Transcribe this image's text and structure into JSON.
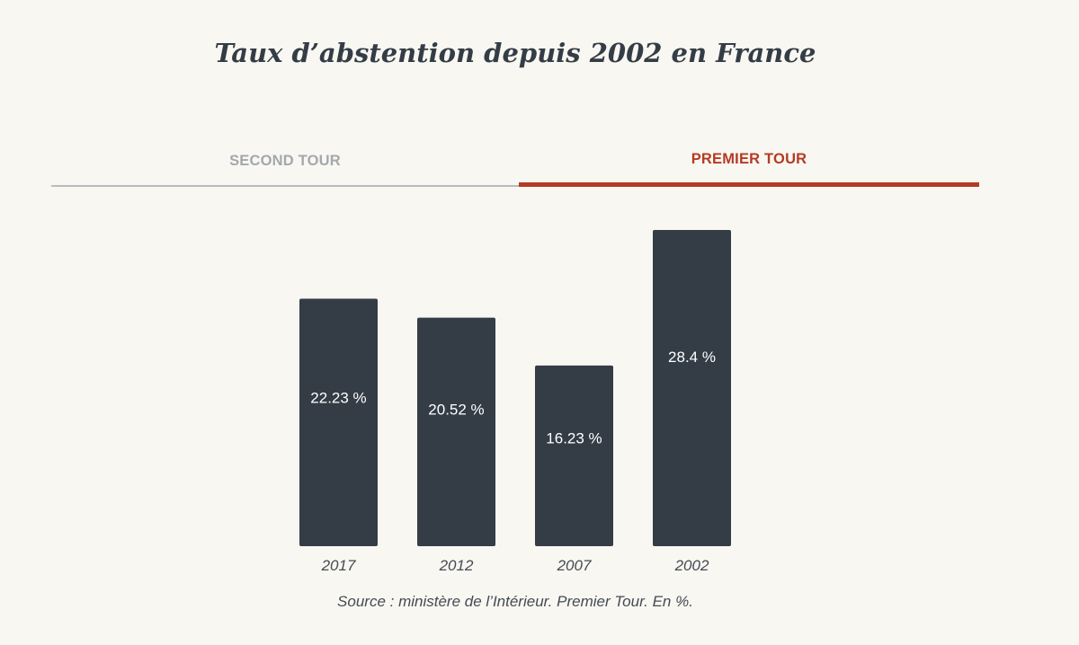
{
  "tabs": {
    "second": "SECOND TOUR",
    "premier": "PREMIER TOUR",
    "active": "premier"
  },
  "colors": {
    "bar": "#343d46",
    "accent": "#b43b25",
    "inactive": "#a3a8ad",
    "background": "#f9f7f2"
  },
  "chart_data": {
    "type": "bar",
    "title": "Taux d’abstention depuis 2002 en France",
    "categories": [
      "2017",
      "2012",
      "2007",
      "2002"
    ],
    "values": [
      22.23,
      20.52,
      16.23,
      28.4
    ],
    "value_labels": [
      "22.23 %",
      "20.52 %",
      "16.23 %",
      "28.4 %"
    ],
    "xlabel": "",
    "ylabel": "",
    "ylim": [
      0,
      28.4
    ],
    "grid": false,
    "legend": "none",
    "source": "Source : ministère de l’Intérieur. Premier Tour. En %."
  }
}
